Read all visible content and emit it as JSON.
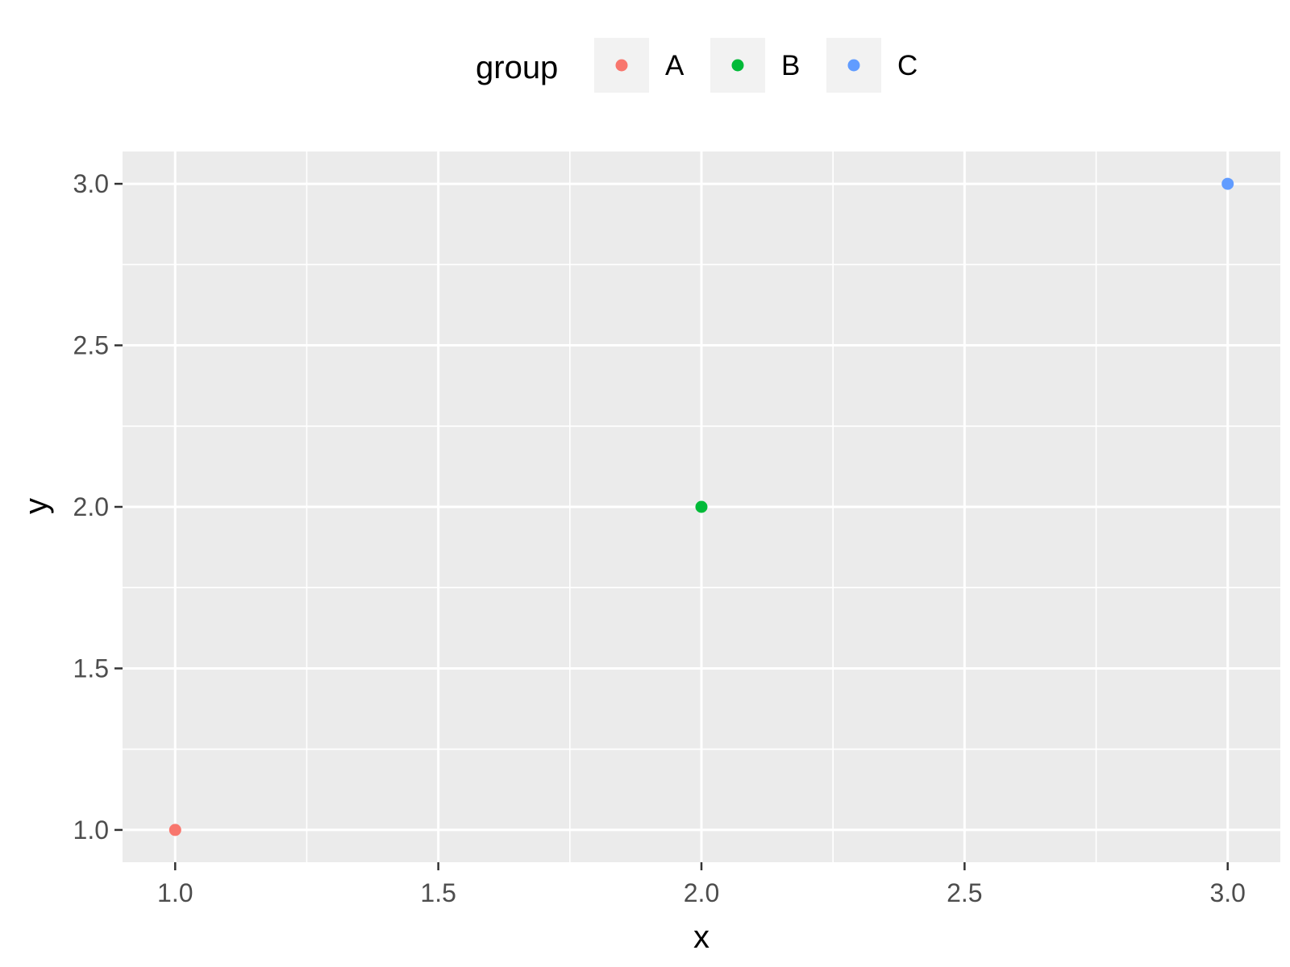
{
  "chart_data": {
    "type": "scatter",
    "xlabel": "x",
    "ylabel": "y",
    "xlim": [
      0.9,
      3.1
    ],
    "ylim": [
      0.9,
      3.1
    ],
    "x_ticks": [
      1.0,
      1.5,
      2.0,
      2.5,
      3.0
    ],
    "y_ticks": [
      1.0,
      1.5,
      2.0,
      2.5,
      3.0
    ],
    "x_tick_labels": [
      "1.0",
      "1.5",
      "2.0",
      "2.5",
      "3.0"
    ],
    "y_tick_labels": [
      "1.0",
      "1.5",
      "2.0",
      "2.5",
      "3.0"
    ],
    "x_minor": [
      1.25,
      1.75,
      2.25,
      2.75
    ],
    "y_minor": [
      1.25,
      1.75,
      2.25,
      2.75
    ],
    "grid": true,
    "legend": {
      "title": "group",
      "placement": "top",
      "entries": [
        {
          "label": "A",
          "color": "#F8766D"
        },
        {
          "label": "B",
          "color": "#00BA38"
        },
        {
          "label": "C",
          "color": "#619CFF"
        }
      ]
    },
    "points": [
      {
        "x": 1.0,
        "y": 1.0,
        "group": "A",
        "color": "#F8766D"
      },
      {
        "x": 2.0,
        "y": 2.0,
        "group": "B",
        "color": "#00BA38"
      },
      {
        "x": 3.0,
        "y": 3.0,
        "group": "C",
        "color": "#619CFF"
      }
    ],
    "panel_background": "#EBEBEB",
    "grid_color": "#FFFFFF"
  }
}
